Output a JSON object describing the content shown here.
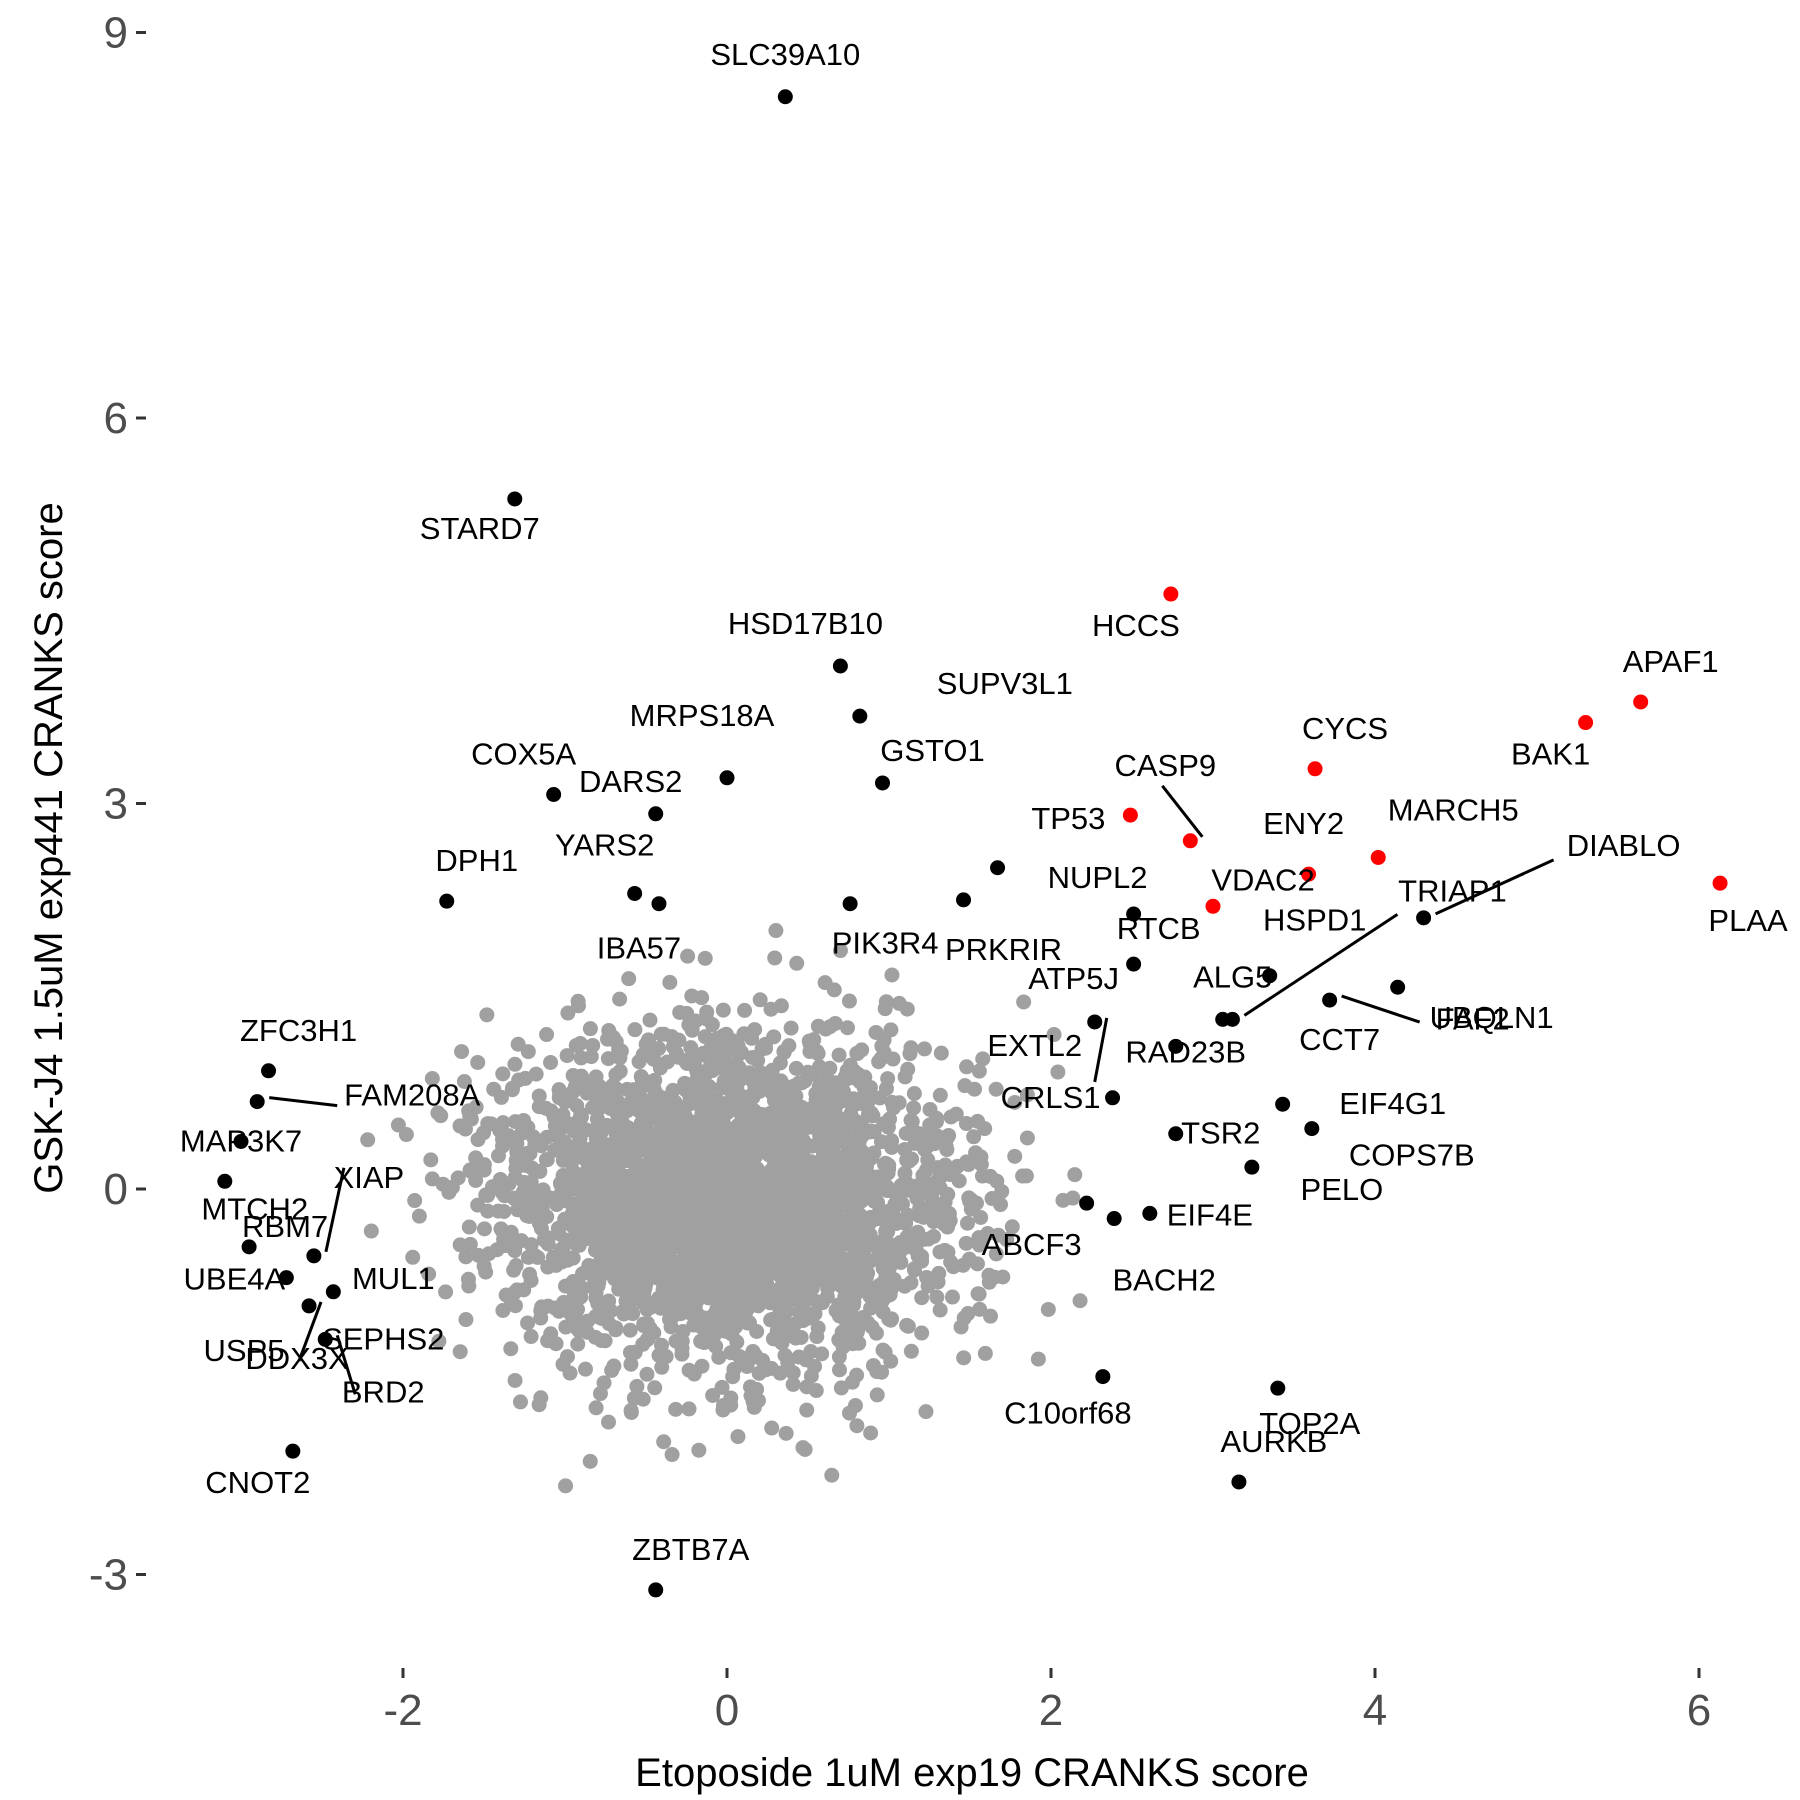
{
  "chart_data": {
    "type": "scatter",
    "xlabel": "Etoposide 1uM exp19 CRANKS score",
    "ylabel": "GSK-J4 1.5uM exp441 CRANKS score",
    "xlim": [
      -3.0,
      6.3
    ],
    "ylim": [
      -3.6,
      9.15
    ],
    "x_ticks": [
      -2,
      0,
      2,
      4,
      6
    ],
    "y_ticks": [
      -3,
      0,
      3,
      6,
      9
    ],
    "x_tick_labels": [
      "-2",
      "0",
      "2",
      "4",
      "6"
    ],
    "y_tick_labels": [
      "-3",
      "0",
      "3",
      "6",
      "9"
    ],
    "grid": false,
    "colors": {
      "background": "#ffffff",
      "background_points": "#a0a0a0",
      "highlight": "#000000",
      "apoptosis": "#ff0000"
    },
    "background_cloud": {
      "description_count": 3000,
      "center": [
        0.0,
        -0.1
      ],
      "sd": [
        0.7,
        0.65
      ]
    },
    "highlighted": [
      {
        "gene": "SLC39A10",
        "x": 0.36,
        "y": 8.5,
        "color": "black"
      },
      {
        "gene": "STARD7",
        "x": -1.31,
        "y": 5.37,
        "color": "black"
      },
      {
        "gene": "HSD17B10",
        "x": 0.7,
        "y": 4.07,
        "color": "black"
      },
      {
        "gene": "SUPV3L1",
        "x": 0.82,
        "y": 3.68,
        "color": "black"
      },
      {
        "gene": "MRPS18A",
        "x": 0.0,
        "y": 3.2,
        "color": "black"
      },
      {
        "gene": "GSTO1",
        "x": 0.96,
        "y": 3.16,
        "color": "black"
      },
      {
        "gene": "COX5A",
        "x": -1.07,
        "y": 3.07,
        "color": "black"
      },
      {
        "gene": "DARS2",
        "x": -0.44,
        "y": 2.92,
        "color": "black"
      },
      {
        "gene": "YARS2",
        "x": -0.57,
        "y": 2.3,
        "color": "black"
      },
      {
        "gene": "DPH1",
        "x": -1.73,
        "y": 2.24,
        "color": "black"
      },
      {
        "gene": "IBA57",
        "x": -0.42,
        "y": 2.22,
        "color": "black"
      },
      {
        "gene": "PIK3R4",
        "x": 0.76,
        "y": 2.22,
        "color": "black"
      },
      {
        "gene": "NUPL2",
        "x": 1.67,
        "y": 2.5,
        "color": "black"
      },
      {
        "gene": "PRKRIR",
        "x": 1.46,
        "y": 2.25,
        "color": "black"
      },
      {
        "gene": "RTCB",
        "x": 2.51,
        "y": 2.14,
        "color": "black"
      },
      {
        "gene": "ATP5J",
        "x": 2.51,
        "y": 1.75,
        "color": "black"
      },
      {
        "gene": "HSPD1",
        "x": 3.35,
        "y": 1.66,
        "color": "black"
      },
      {
        "gene": "FAF2",
        "x": 4.14,
        "y": 1.57,
        "color": "black"
      },
      {
        "gene": "DIABLO",
        "x": 4.3,
        "y": 2.11,
        "color": "black"
      },
      {
        "gene": "TRIAP1",
        "x": 3.12,
        "y": 1.32,
        "color": "black"
      },
      {
        "gene": "ALG5",
        "x": 3.06,
        "y": 1.32,
        "color": "black"
      },
      {
        "gene": "CCT7",
        "x": 3.72,
        "y": 1.47,
        "color": "black"
      },
      {
        "gene": "UBQLN1",
        "x": 3.72,
        "y": 1.47,
        "color": "black"
      },
      {
        "gene": "EXTL2",
        "x": 2.27,
        "y": 1.3,
        "color": "black"
      },
      {
        "gene": "RAD23B",
        "x": 2.77,
        "y": 1.11,
        "color": "black"
      },
      {
        "gene": "CRLS1",
        "x": 2.38,
        "y": 0.71,
        "color": "black"
      },
      {
        "gene": "EIF4G1",
        "x": 3.43,
        "y": 0.66,
        "color": "black"
      },
      {
        "gene": "TSR2",
        "x": 2.77,
        "y": 0.43,
        "color": "black"
      },
      {
        "gene": "COPS7B",
        "x": 3.61,
        "y": 0.47,
        "color": "black"
      },
      {
        "gene": "EIF4E",
        "x": 2.61,
        "y": -0.19,
        "color": "black"
      },
      {
        "gene": "PELO",
        "x": 3.24,
        "y": 0.17,
        "color": "black"
      },
      {
        "gene": "ABCF3",
        "x": 2.22,
        "y": -0.11,
        "color": "black"
      },
      {
        "gene": "BACH2",
        "x": 2.39,
        "y": -0.23,
        "color": "black"
      },
      {
        "gene": "C10orf68",
        "x": 2.32,
        "y": -1.46,
        "color": "black"
      },
      {
        "gene": "TOP2A",
        "x": 3.4,
        "y": -1.55,
        "color": "black"
      },
      {
        "gene": "AURKB",
        "x": 3.16,
        "y": -2.28,
        "color": "black"
      },
      {
        "gene": "ZBTB7A",
        "x": -0.44,
        "y": -3.12,
        "color": "black"
      },
      {
        "gene": "ZFC3H1",
        "x": -2.83,
        "y": 0.92,
        "color": "black"
      },
      {
        "gene": "FAM208A",
        "x": -2.9,
        "y": 0.68,
        "color": "black"
      },
      {
        "gene": "MAP3K7",
        "x": -3.0,
        "y": 0.37,
        "color": "black"
      },
      {
        "gene": "MTCH2",
        "x": -3.1,
        "y": 0.06,
        "color": "black"
      },
      {
        "gene": "XIAP",
        "x": -2.55,
        "y": -0.52,
        "color": "black"
      },
      {
        "gene": "RBM7",
        "x": -2.95,
        "y": -0.45,
        "color": "black"
      },
      {
        "gene": "UBE4A",
        "x": -2.72,
        "y": -0.69,
        "color": "black"
      },
      {
        "gene": "MUL1",
        "x": -2.43,
        "y": -0.8,
        "color": "black"
      },
      {
        "gene": "USP5",
        "x": -2.58,
        "y": -0.91,
        "color": "black"
      },
      {
        "gene": "SEPHS2",
        "x": -2.48,
        "y": -1.17,
        "color": "black"
      },
      {
        "gene": "DDX3X",
        "x": -2.58,
        "y": -0.91,
        "color": "black"
      },
      {
        "gene": "BRD2",
        "x": -2.48,
        "y": -1.17,
        "color": "black"
      },
      {
        "gene": "CNOT2",
        "x": -2.68,
        "y": -2.04,
        "color": "black"
      },
      {
        "gene": "HCCS",
        "x": 2.74,
        "y": 4.63,
        "color": "red"
      },
      {
        "gene": "APAF1",
        "x": 5.64,
        "y": 3.79,
        "color": "red"
      },
      {
        "gene": "BAK1",
        "x": 5.3,
        "y": 3.63,
        "color": "red"
      },
      {
        "gene": "CYCS",
        "x": 3.63,
        "y": 3.27,
        "color": "red"
      },
      {
        "gene": "CASP9",
        "x": 2.86,
        "y": 2.71,
        "color": "red"
      },
      {
        "gene": "TP53",
        "x": 2.49,
        "y": 2.91,
        "color": "red"
      },
      {
        "gene": "ENY2",
        "x": 3.59,
        "y": 2.45,
        "color": "red"
      },
      {
        "gene": "MARCH5",
        "x": 4.02,
        "y": 2.58,
        "color": "red"
      },
      {
        "gene": "VDAC2",
        "x": 3.0,
        "y": 2.2,
        "color": "red"
      },
      {
        "gene": "PLAA",
        "x": 6.13,
        "y": 2.38,
        "color": "red"
      }
    ]
  }
}
